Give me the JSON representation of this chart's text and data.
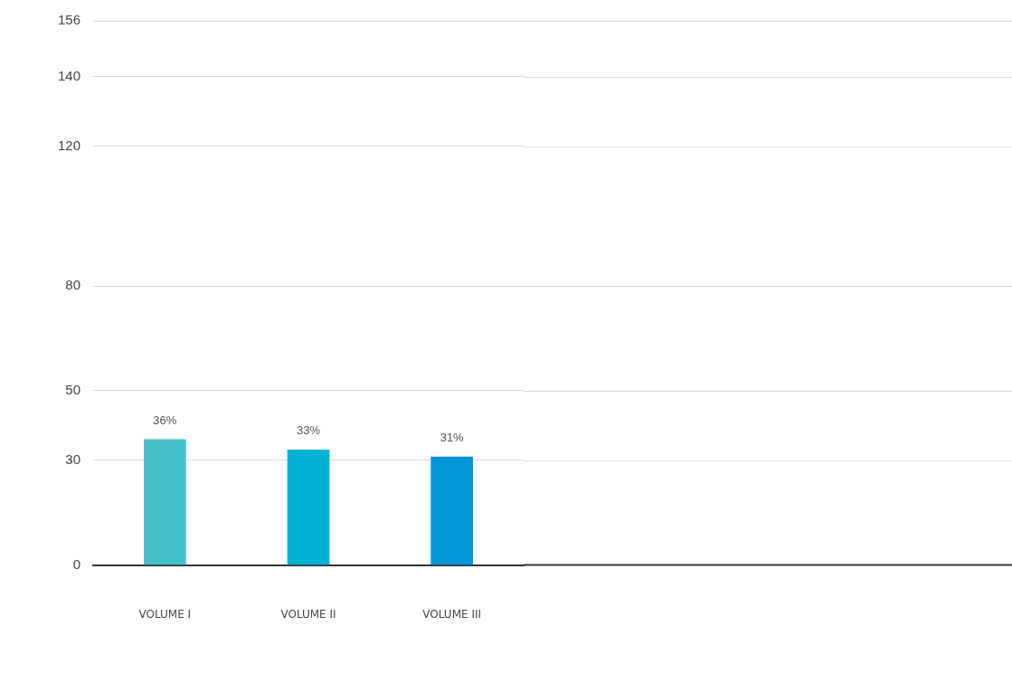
{
  "chart_data": {
    "type": "bar",
    "categories": [
      "VOLUME I",
      "VOLUME II",
      "VOLUME III"
    ],
    "values": [
      36,
      33,
      31
    ],
    "colors": [
      "#45c1cb",
      "#00b3d6",
      "#0097d7"
    ],
    "value_labels": [
      "36%",
      "33%",
      "31%"
    ],
    "ylim": [
      0,
      156
    ],
    "yticks": [
      0,
      30,
      50,
      80,
      120,
      140,
      156
    ],
    "grid": "y"
  }
}
